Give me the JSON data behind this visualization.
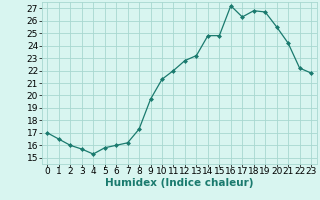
{
  "x": [
    0,
    1,
    2,
    3,
    4,
    5,
    6,
    7,
    8,
    9,
    10,
    11,
    12,
    13,
    14,
    15,
    16,
    17,
    18,
    19,
    20,
    21,
    22,
    23
  ],
  "y": [
    17.0,
    16.5,
    16.0,
    15.7,
    15.3,
    15.8,
    16.0,
    16.2,
    17.3,
    19.7,
    21.3,
    22.0,
    22.8,
    23.2,
    24.8,
    24.8,
    27.2,
    26.3,
    26.8,
    26.7,
    25.5,
    24.2,
    22.2,
    21.8
  ],
  "line_color": "#1a7a6e",
  "marker_color": "#1a7a6e",
  "bg_color": "#d8f5f0",
  "grid_color": "#a8d8d0",
  "xlabel": "Humidex (Indice chaleur)",
  "xlim": [
    -0.5,
    23.5
  ],
  "ylim": [
    14.5,
    27.5
  ],
  "yticks": [
    15,
    16,
    17,
    18,
    19,
    20,
    21,
    22,
    23,
    24,
    25,
    26,
    27
  ],
  "xticks": [
    0,
    1,
    2,
    3,
    4,
    5,
    6,
    7,
    8,
    9,
    10,
    11,
    12,
    13,
    14,
    15,
    16,
    17,
    18,
    19,
    20,
    21,
    22,
    23
  ],
  "tick_fontsize": 6.5,
  "label_fontsize": 7.5
}
